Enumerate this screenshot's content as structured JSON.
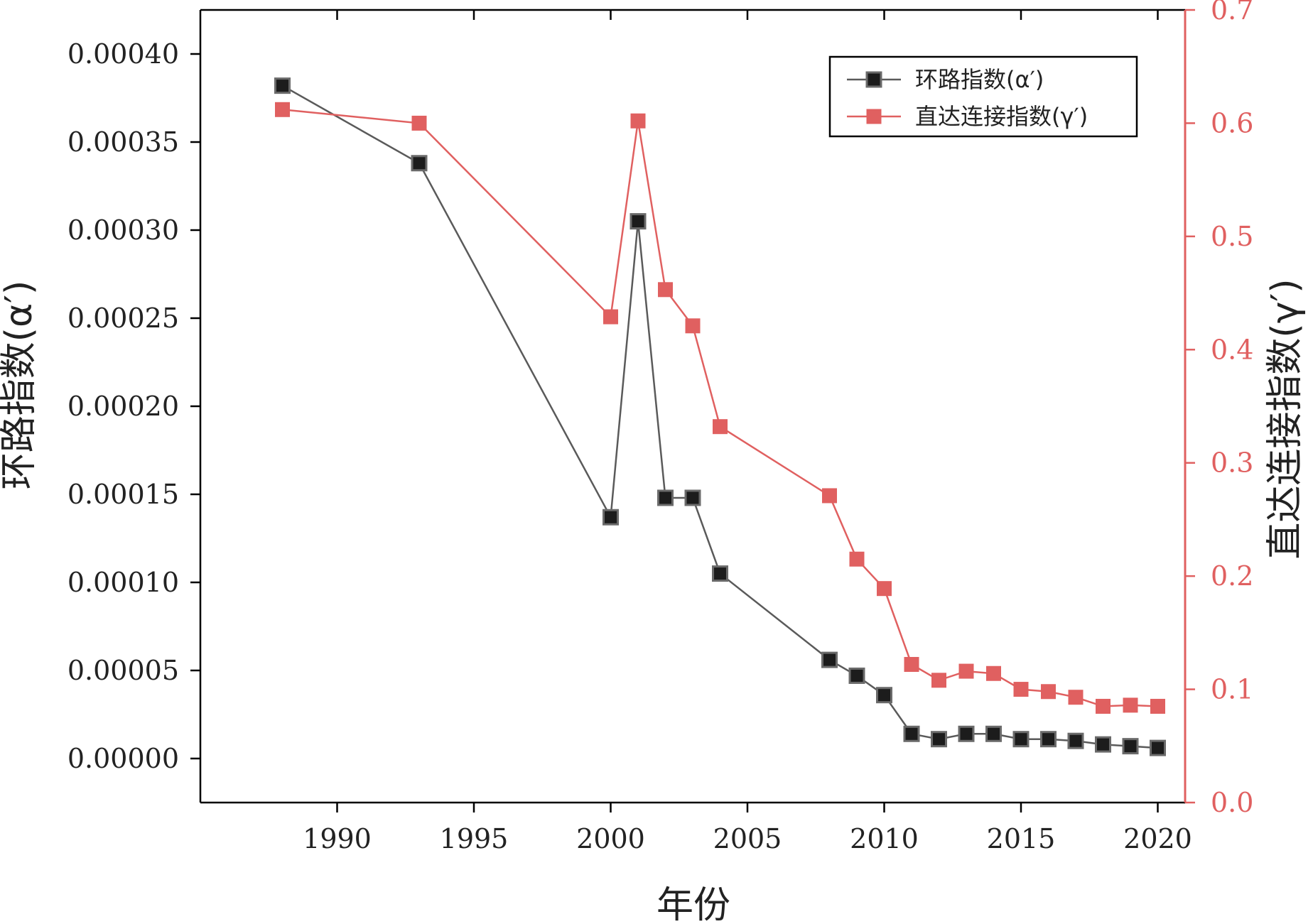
{
  "chart_data": {
    "type": "line",
    "x_axis": {
      "label": "年份",
      "range": [
        1985,
        2021
      ],
      "ticks": [
        1990,
        1995,
        2000,
        2005,
        2010,
        2015,
        2020
      ],
      "tick_labels": [
        "1990",
        "1995",
        "2000",
        "2005",
        "2010",
        "2015",
        "2020"
      ]
    },
    "y_left": {
      "label": "环路指数(α′)",
      "range": [
        -2.5e-05,
        0.000425
      ],
      "ticks": [
        0,
        5e-05,
        0.0001,
        0.00015,
        0.0002,
        0.00025,
        0.0003,
        0.00035,
        0.0004
      ],
      "tick_labels": [
        "0.00000",
        "0.00005",
        "0.00010",
        "0.00015",
        "0.00020",
        "0.00025",
        "0.00030",
        "0.00035",
        "0.00040"
      ]
    },
    "y_right": {
      "label": "直达连接指数(γ′)",
      "range": [
        0,
        0.7
      ],
      "ticks": [
        0,
        0.1,
        0.2,
        0.3,
        0.4,
        0.5,
        0.6,
        0.7
      ],
      "tick_labels": [
        "0.0",
        "0.1",
        "0.2",
        "0.3",
        "0.4",
        "0.5",
        "0.6",
        "0.7"
      ]
    },
    "legend_position": "top-right",
    "grid": false,
    "series": [
      {
        "name": "环路指数(α′)",
        "axis": "left",
        "color": "#5a5a5a",
        "marker_color": "#1c1c1c",
        "x": [
          1988,
          1993,
          2000,
          2001,
          2002,
          2003,
          2004,
          2008,
          2009,
          2010,
          2011,
          2012,
          2013,
          2014,
          2015,
          2016,
          2017,
          2018,
          2019,
          2020
        ],
        "y": [
          0.000382,
          0.000338,
          0.000137,
          0.000305,
          0.000148,
          0.000148,
          0.000105,
          5.6e-05,
          4.7e-05,
          3.6e-05,
          1.4e-05,
          1.1e-05,
          1.4e-05,
          1.4e-05,
          1.1e-05,
          1.1e-05,
          1e-05,
          8e-06,
          7e-06,
          6e-06
        ]
      },
      {
        "name": "直达连接指数(γ′)",
        "axis": "right",
        "color": "#e06060",
        "marker_color": "#e06060",
        "x": [
          1988,
          1993,
          2000,
          2001,
          2002,
          2003,
          2004,
          2008,
          2009,
          2010,
          2011,
          2012,
          2013,
          2014,
          2015,
          2016,
          2017,
          2018,
          2019,
          2020
        ],
        "y": [
          0.612,
          0.6,
          0.429,
          0.602,
          0.453,
          0.421,
          0.332,
          0.271,
          0.215,
          0.189,
          0.122,
          0.108,
          0.116,
          0.114,
          0.1,
          0.098,
          0.093,
          0.085,
          0.086,
          0.085
        ]
      }
    ]
  }
}
